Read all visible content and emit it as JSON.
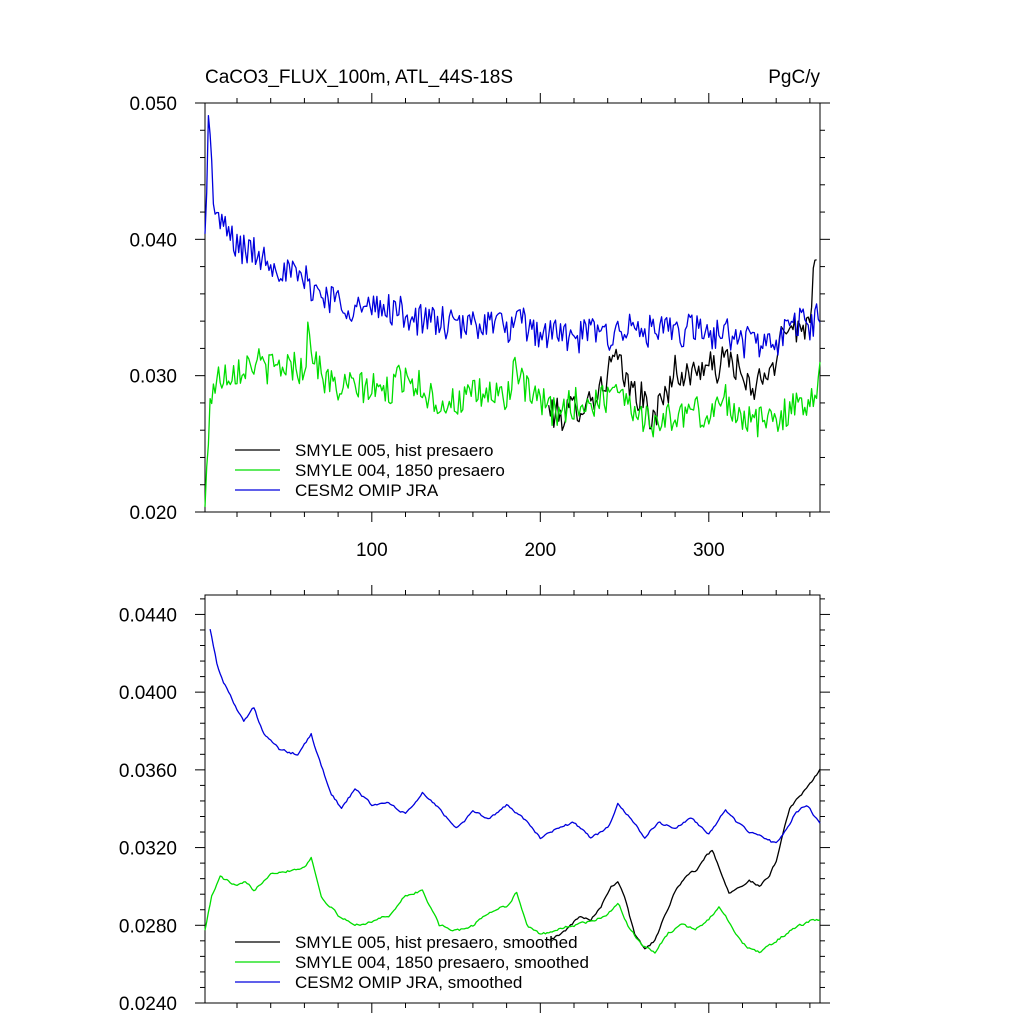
{
  "chart_data": [
    {
      "type": "line",
      "title": "CaCO3_FLUX_100m, ATL_44S-18S",
      "units": "PgC/y",
      "xlim": [
        1,
        366
      ],
      "ylim": [
        0.02,
        0.05
      ],
      "x_ticks": [
        100,
        200,
        300
      ],
      "y_ticks": [
        "0.020",
        "0.030",
        "0.040",
        "0.050"
      ],
      "legend_position": "lower-left",
      "series": [
        {
          "name": "SMYLE 005, hist presaero",
          "color": "#000000",
          "x_start": 205,
          "points": [
            [
              205,
              0.0275
            ],
            [
              212,
              0.027
            ],
            [
              220,
              0.0276
            ],
            [
              228,
              0.0281
            ],
            [
              236,
              0.029
            ],
            [
              244,
              0.0314
            ],
            [
              252,
              0.0293
            ],
            [
              260,
              0.0284
            ],
            [
              266,
              0.0268
            ],
            [
              272,
              0.028
            ],
            [
              280,
              0.0304
            ],
            [
              288,
              0.0299
            ],
            [
              296,
              0.0308
            ],
            [
              304,
              0.0304
            ],
            [
              312,
              0.0315
            ],
            [
              320,
              0.0298
            ],
            [
              326,
              0.0285
            ],
            [
              332,
              0.0303
            ],
            [
              338,
              0.0298
            ],
            [
              344,
              0.034
            ],
            [
              350,
              0.0338
            ],
            [
              356,
              0.033
            ],
            [
              360,
              0.035
            ],
            [
              364,
              0.0395
            ]
          ]
        },
        {
          "name": "SMYLE 004, 1850 presaero",
          "color": "#00dd00",
          "points": [
            [
              1,
              0.02
            ],
            [
              4,
              0.0285
            ],
            [
              10,
              0.03
            ],
            [
              20,
              0.0305
            ],
            [
              30,
              0.031
            ],
            [
              40,
              0.0305
            ],
            [
              50,
              0.0308
            ],
            [
              60,
              0.0305
            ],
            [
              62,
              0.033
            ],
            [
              70,
              0.03
            ],
            [
              80,
              0.029
            ],
            [
              90,
              0.0292
            ],
            [
              100,
              0.029
            ],
            [
              110,
              0.0288
            ],
            [
              120,
              0.0302
            ],
            [
              130,
              0.029
            ],
            [
              140,
              0.028
            ],
            [
              150,
              0.028
            ],
            [
              160,
              0.0285
            ],
            [
              170,
              0.0287
            ],
            [
              180,
              0.0284
            ],
            [
              185,
              0.0308
            ],
            [
              190,
              0.029
            ],
            [
              200,
              0.028
            ],
            [
              210,
              0.0272
            ],
            [
              220,
              0.028
            ],
            [
              230,
              0.0278
            ],
            [
              240,
              0.0285
            ],
            [
              245,
              0.0298
            ],
            [
              250,
              0.0285
            ],
            [
              260,
              0.027
            ],
            [
              270,
              0.0265
            ],
            [
              280,
              0.027
            ],
            [
              290,
              0.0275
            ],
            [
              300,
              0.027
            ],
            [
              310,
              0.0283
            ],
            [
              320,
              0.027
            ],
            [
              330,
              0.0265
            ],
            [
              340,
              0.027
            ],
            [
              350,
              0.0275
            ],
            [
              360,
              0.0283
            ],
            [
              366,
              0.03
            ]
          ]
        },
        {
          "name": "CESM2 OMIP JRA",
          "color": "#0000dd",
          "points": [
            [
              1,
              0.04
            ],
            [
              3,
              0.049
            ],
            [
              6,
              0.043
            ],
            [
              10,
              0.041
            ],
            [
              15,
              0.0405
            ],
            [
              20,
              0.0395
            ],
            [
              30,
              0.039
            ],
            [
              40,
              0.0385
            ],
            [
              50,
              0.0375
            ],
            [
              60,
              0.037
            ],
            [
              70,
              0.036
            ],
            [
              80,
              0.0355
            ],
            [
              90,
              0.035
            ],
            [
              100,
              0.0348
            ],
            [
              110,
              0.035
            ],
            [
              120,
              0.0345
            ],
            [
              130,
              0.034
            ],
            [
              140,
              0.034
            ],
            [
              150,
              0.0335
            ],
            [
              160,
              0.0338
            ],
            [
              170,
              0.034
            ],
            [
              180,
              0.0335
            ],
            [
              190,
              0.0338
            ],
            [
              200,
              0.033
            ],
            [
              210,
              0.0332
            ],
            [
              220,
              0.0325
            ],
            [
              230,
              0.0333
            ],
            [
              240,
              0.033
            ],
            [
              250,
              0.0335
            ],
            [
              260,
              0.0332
            ],
            [
              270,
              0.0333
            ],
            [
              280,
              0.033
            ],
            [
              290,
              0.0335
            ],
            [
              300,
              0.033
            ],
            [
              310,
              0.0332
            ],
            [
              320,
              0.0325
            ],
            [
              330,
              0.0325
            ],
            [
              340,
              0.0322
            ],
            [
              350,
              0.034
            ],
            [
              360,
              0.0338
            ],
            [
              366,
              0.0345
            ]
          ]
        }
      ]
    },
    {
      "type": "line",
      "xlim": [
        1,
        366
      ],
      "ylim": [
        0.024,
        0.045
      ],
      "x_ticks": [
        100,
        200,
        300
      ],
      "y_ticks": [
        "0.0240",
        "0.0280",
        "0.0320",
        "0.0360",
        "0.0400",
        "0.0440"
      ],
      "legend_position": "lower-left",
      "series": [
        {
          "name": "SMYLE 005, hist presaero, smoothed",
          "color": "#000000",
          "points": [
            [
              205,
              0.0273
            ],
            [
              212,
              0.0275
            ],
            [
              218,
              0.028
            ],
            [
              224,
              0.0285
            ],
            [
              230,
              0.0283
            ],
            [
              236,
              0.029
            ],
            [
              242,
              0.03
            ],
            [
              246,
              0.0303
            ],
            [
              250,
              0.0295
            ],
            [
              256,
              0.0275
            ],
            [
              262,
              0.0268
            ],
            [
              268,
              0.0272
            ],
            [
              274,
              0.0285
            ],
            [
              280,
              0.0298
            ],
            [
              286,
              0.0305
            ],
            [
              292,
              0.0308
            ],
            [
              298,
              0.0315
            ],
            [
              302,
              0.0319
            ],
            [
              306,
              0.031
            ],
            [
              312,
              0.0297
            ],
            [
              318,
              0.03
            ],
            [
              324,
              0.0303
            ],
            [
              330,
              0.03
            ],
            [
              336,
              0.0305
            ],
            [
              340,
              0.0313
            ],
            [
              344,
              0.0328
            ],
            [
              348,
              0.034
            ],
            [
              352,
              0.0345
            ],
            [
              358,
              0.035
            ],
            [
              366,
              0.036
            ]
          ]
        },
        {
          "name": "SMYLE 004, 1850 presaero, smoothed",
          "color": "#00dd00",
          "points": [
            [
              1,
              0.0278
            ],
            [
              5,
              0.0295
            ],
            [
              10,
              0.0305
            ],
            [
              20,
              0.03
            ],
            [
              25,
              0.0302
            ],
            [
              30,
              0.0298
            ],
            [
              40,
              0.0307
            ],
            [
              50,
              0.0308
            ],
            [
              60,
              0.031
            ],
            [
              64,
              0.0315
            ],
            [
              70,
              0.0295
            ],
            [
              80,
              0.0285
            ],
            [
              90,
              0.028
            ],
            [
              100,
              0.0282
            ],
            [
              110,
              0.0285
            ],
            [
              120,
              0.0295
            ],
            [
              130,
              0.0298
            ],
            [
              140,
              0.028
            ],
            [
              150,
              0.0277
            ],
            [
              160,
              0.028
            ],
            [
              170,
              0.0287
            ],
            [
              180,
              0.029
            ],
            [
              186,
              0.0297
            ],
            [
              192,
              0.028
            ],
            [
              200,
              0.0275
            ],
            [
              210,
              0.0278
            ],
            [
              220,
              0.028
            ],
            [
              230,
              0.0282
            ],
            [
              240,
              0.0285
            ],
            [
              246,
              0.0292
            ],
            [
              252,
              0.028
            ],
            [
              260,
              0.027
            ],
            [
              268,
              0.0266
            ],
            [
              276,
              0.0276
            ],
            [
              284,
              0.028
            ],
            [
              292,
              0.0278
            ],
            [
              300,
              0.0283
            ],
            [
              306,
              0.029
            ],
            [
              312,
              0.0282
            ],
            [
              320,
              0.027
            ],
            [
              330,
              0.0266
            ],
            [
              340,
              0.0272
            ],
            [
              350,
              0.0278
            ],
            [
              360,
              0.0282
            ],
            [
              366,
              0.0283
            ]
          ]
        },
        {
          "name": "CESM2 OMIP JRA, smoothed",
          "color": "#0000dd",
          "points": [
            [
              4,
              0.0433
            ],
            [
              8,
              0.0415
            ],
            [
              12,
              0.0405
            ],
            [
              18,
              0.0395
            ],
            [
              24,
              0.0385
            ],
            [
              30,
              0.0392
            ],
            [
              36,
              0.0378
            ],
            [
              46,
              0.037
            ],
            [
              56,
              0.0368
            ],
            [
              64,
              0.0378
            ],
            [
              70,
              0.0362
            ],
            [
              76,
              0.0348
            ],
            [
              82,
              0.034
            ],
            [
              90,
              0.035
            ],
            [
              100,
              0.0342
            ],
            [
              110,
              0.0343
            ],
            [
              120,
              0.0337
            ],
            [
              130,
              0.0348
            ],
            [
              140,
              0.034
            ],
            [
              150,
              0.033
            ],
            [
              160,
              0.0338
            ],
            [
              170,
              0.0335
            ],
            [
              180,
              0.0342
            ],
            [
              190,
              0.0335
            ],
            [
              200,
              0.0325
            ],
            [
              210,
              0.033
            ],
            [
              220,
              0.0333
            ],
            [
              230,
              0.0325
            ],
            [
              240,
              0.033
            ],
            [
              246,
              0.0342
            ],
            [
              254,
              0.0335
            ],
            [
              262,
              0.0325
            ],
            [
              270,
              0.0333
            ],
            [
              280,
              0.033
            ],
            [
              290,
              0.0335
            ],
            [
              300,
              0.0327
            ],
            [
              310,
              0.034
            ],
            [
              316,
              0.0333
            ],
            [
              324,
              0.0328
            ],
            [
              332,
              0.0325
            ],
            [
              340,
              0.0322
            ],
            [
              346,
              0.033
            ],
            [
              352,
              0.0338
            ],
            [
              358,
              0.0342
            ],
            [
              366,
              0.0332
            ]
          ]
        }
      ]
    }
  ]
}
